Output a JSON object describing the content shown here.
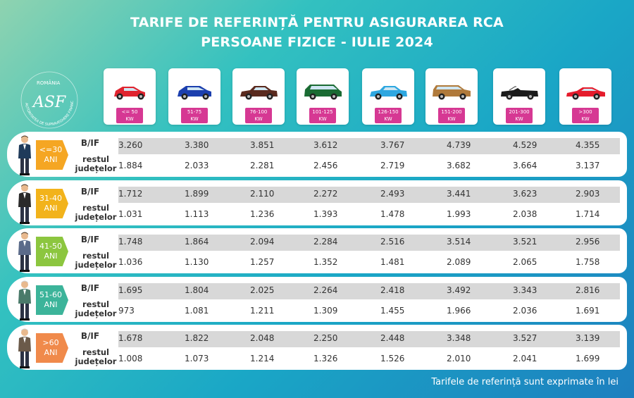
{
  "title": {
    "line1": "TARIFE DE REFERINȚĂ PENTRU ASIGURAREA RCA",
    "line2": "PERSOANE FIZICE - IULIE 2024"
  },
  "logo": {
    "top_text": "ROMÂNIA",
    "arc_text": "AUTORITATEA DE SUPRAVEGHERE FINANCIARĂ",
    "monogram": "ASF"
  },
  "categories": [
    {
      "kw1": "<= 50",
      "kw2": "KW",
      "color": "#e0242f",
      "shape": "hatch"
    },
    {
      "kw1": "51-75",
      "kw2": "KW",
      "color": "#1c3fae",
      "shape": "suv-small"
    },
    {
      "kw1": "76-100",
      "kw2": "KW",
      "color": "#5a2a1e",
      "shape": "sedan"
    },
    {
      "kw1": "101-125",
      "kw2": "KW",
      "color": "#1a6b33",
      "shape": "van"
    },
    {
      "kw1": "126-150",
      "kw2": "KW",
      "color": "#2ea7e0",
      "shape": "sedan"
    },
    {
      "kw1": "151-200",
      "kw2": "KW",
      "color": "#b07a3b",
      "shape": "wagon"
    },
    {
      "kw1": "201-300",
      "kw2": "KW",
      "color": "#1a1a1a",
      "shape": "cabrio"
    },
    {
      "kw1": ">300",
      "kw2": "KW",
      "color": "#e51c2c",
      "shape": "sport"
    }
  ],
  "row_labels": {
    "bif": "B/IF",
    "rest1": "restul",
    "rest2": "județelor"
  },
  "groups": [
    {
      "age1": "<=30",
      "age2": "ANI",
      "color": "#f5a623",
      "suit": "#1f3a5a",
      "bif": [
        "3.260",
        "3.380",
        "3.851",
        "3.612",
        "3.767",
        "4.739",
        "4.529",
        "4.355"
      ],
      "rest": [
        "1.884",
        "2.033",
        "2.281",
        "2.456",
        "2.719",
        "3.682",
        "3.664",
        "3.137"
      ]
    },
    {
      "age1": "31-40",
      "age2": "ANI",
      "color": "#f2b31b",
      "suit": "#2a2a2a",
      "bif": [
        "1.712",
        "1.899",
        "2.110",
        "2.272",
        "2.493",
        "3.441",
        "3.623",
        "2.903"
      ],
      "rest": [
        "1.031",
        "1.113",
        "1.236",
        "1.393",
        "1.478",
        "1.993",
        "2.038",
        "1.714"
      ]
    },
    {
      "age1": "41-50",
      "age2": "ANI",
      "color": "#8cc63f",
      "suit": "#5b6b8a",
      "bif": [
        "1.748",
        "1.864",
        "2.094",
        "2.284",
        "2.516",
        "3.514",
        "3.521",
        "2.956"
      ],
      "rest": [
        "1.036",
        "1.130",
        "1.257",
        "1.352",
        "1.481",
        "2.089",
        "2.065",
        "1.758"
      ]
    },
    {
      "age1": "51-60",
      "age2": "ANI",
      "color": "#3cb49a",
      "suit": "#4a7a6a",
      "bif": [
        "1.695",
        "1.804",
        "2.025",
        "2.264",
        "2.418",
        "3.492",
        "3.343",
        "2.816"
      ],
      "rest": [
        "973",
        "1.081",
        "1.211",
        "1.309",
        "1.455",
        "1.966",
        "2.036",
        "1.691"
      ]
    },
    {
      "age1": ">60",
      "age2": "ANI",
      "color": "#f08a4b",
      "suit": "#6b5a4a",
      "bif": [
        "1.678",
        "1.822",
        "2.048",
        "2.250",
        "2.448",
        "3.348",
        "3.527",
        "3.139"
      ],
      "rest": [
        "1.008",
        "1.073",
        "1.214",
        "1.326",
        "1.526",
        "2.010",
        "2.041",
        "1.699"
      ]
    }
  ],
  "footer": "Tarifele de referință sunt exprimate în lei"
}
